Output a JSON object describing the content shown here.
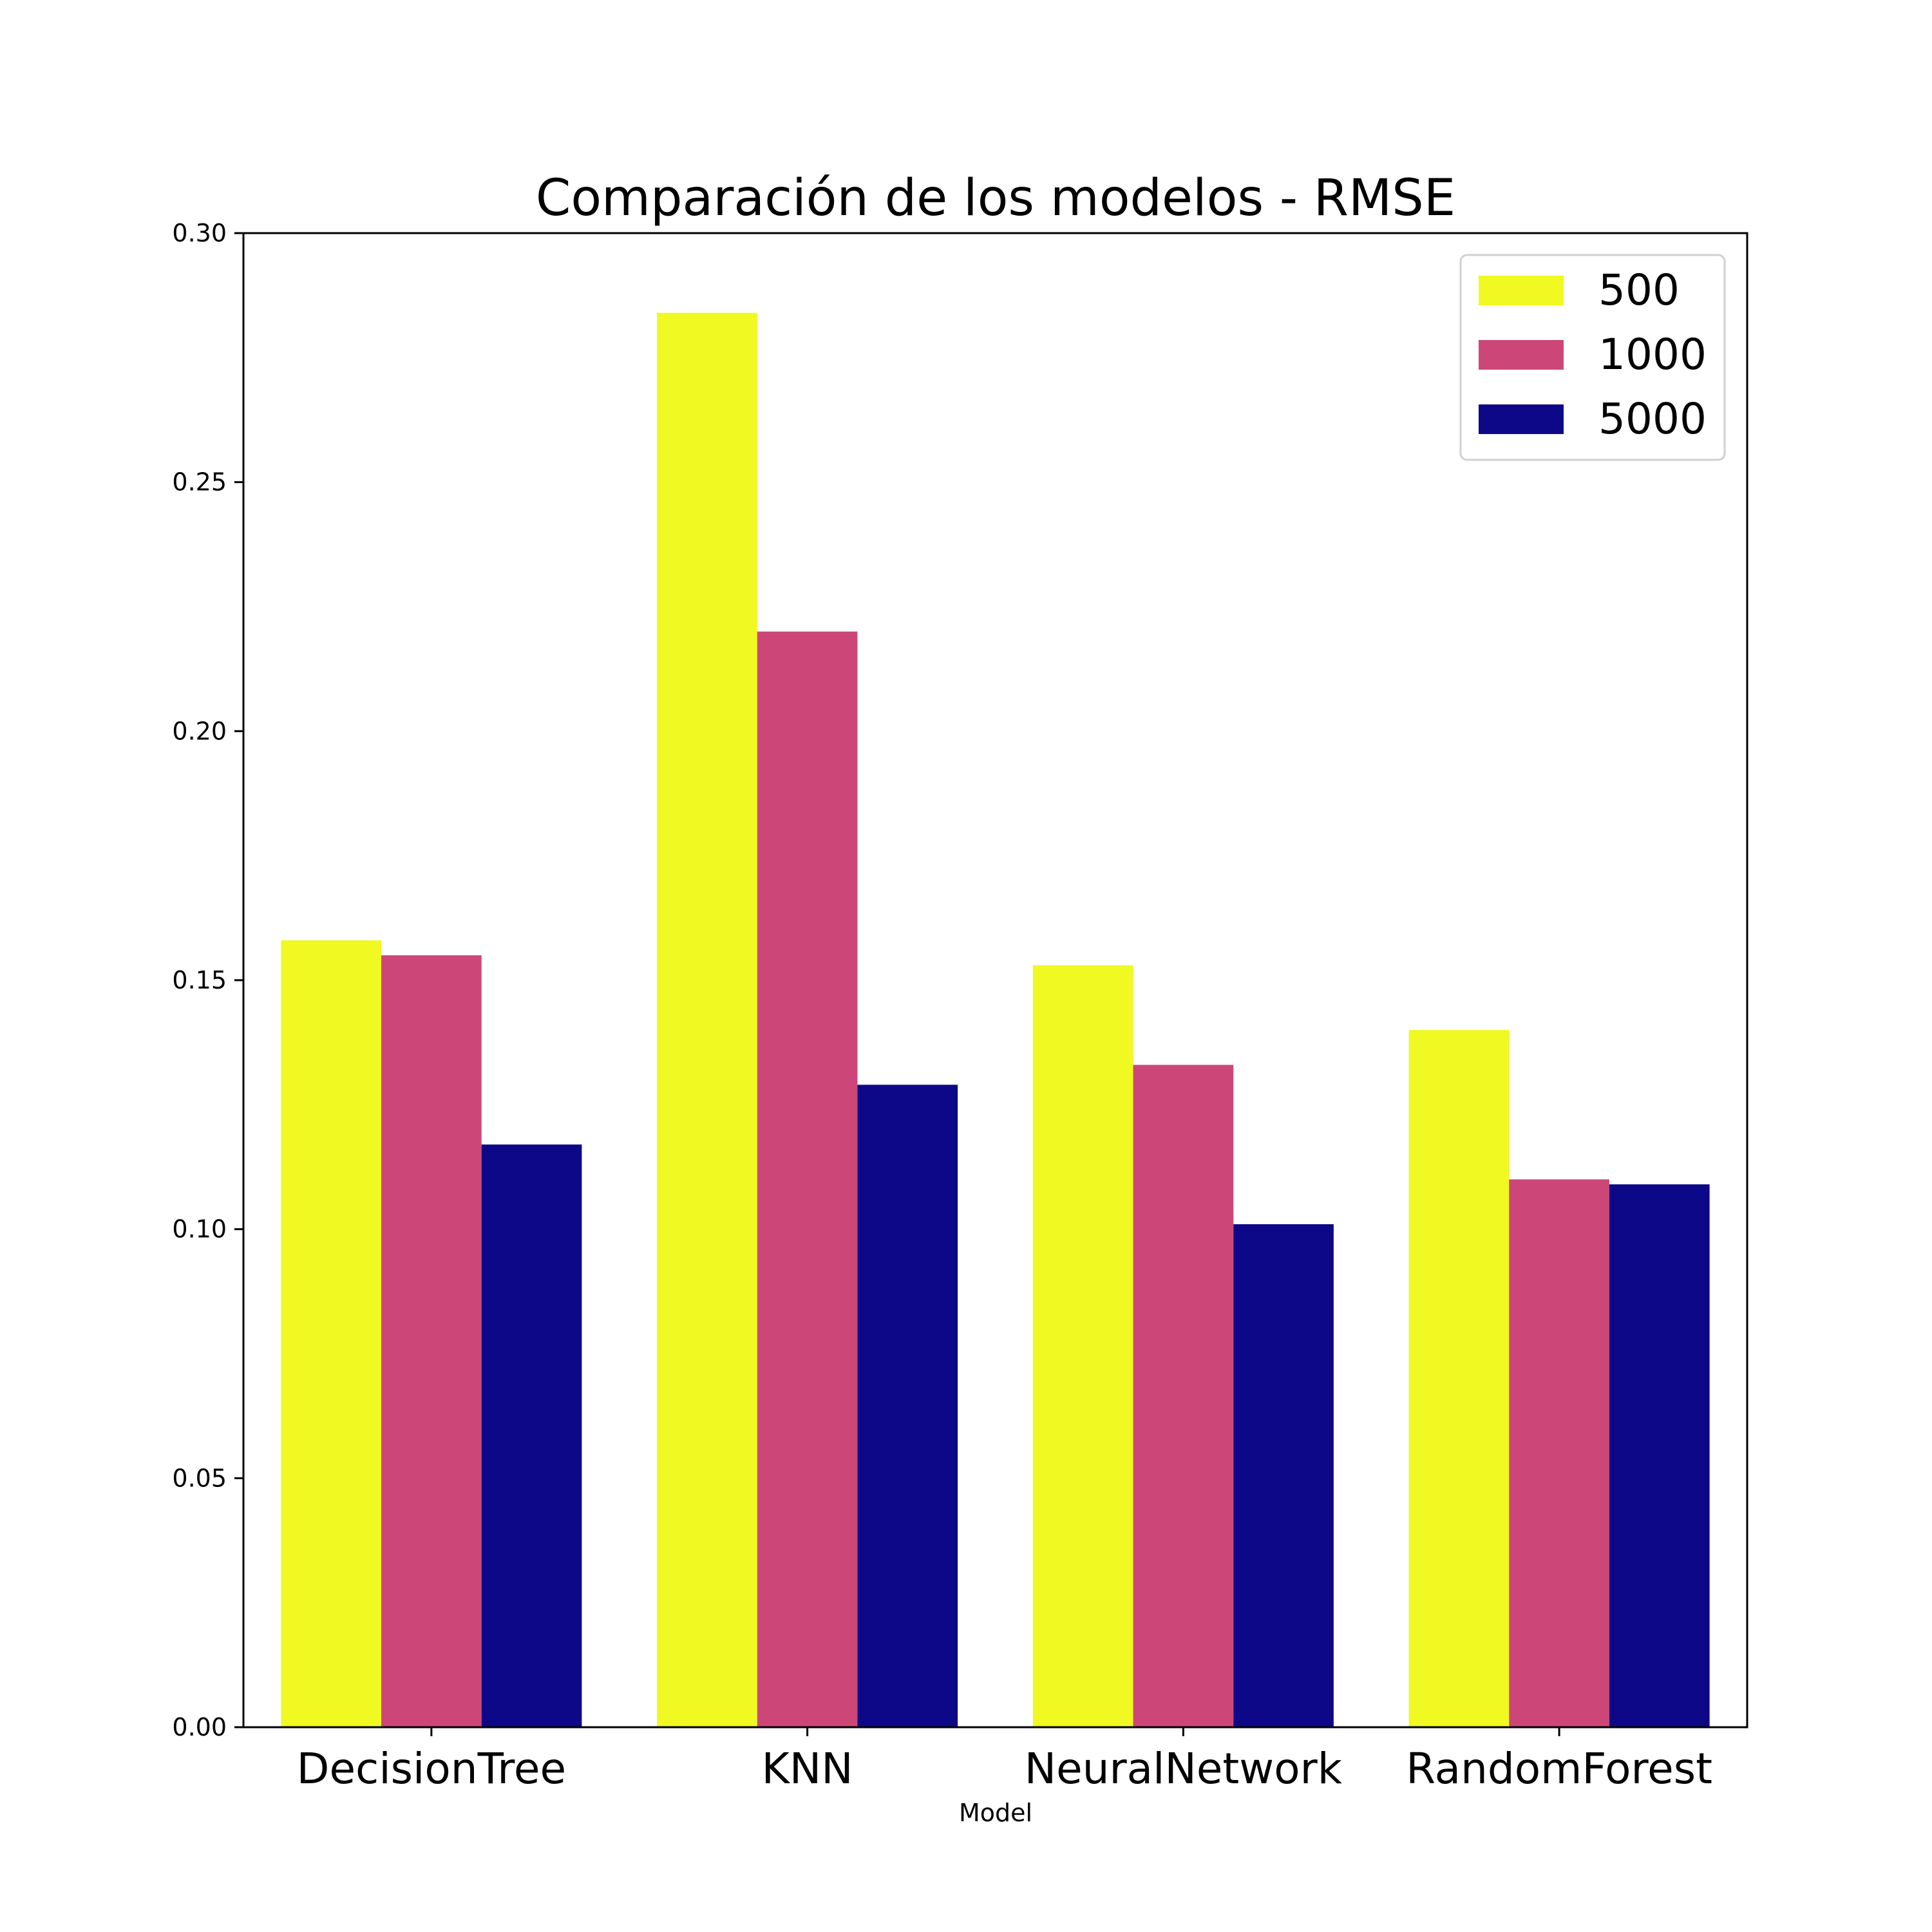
{
  "chart_data": {
    "type": "bar",
    "title": "Comparación de los modelos - RMSE",
    "xlabel": "Model",
    "ylabel": "",
    "categories": [
      "DecisionTree",
      "KNN",
      "NeuralNetwork",
      "RandomForest"
    ],
    "series": [
      {
        "name": "500",
        "color": "#f0f921",
        "values": [
          0.158,
          0.284,
          0.153,
          0.14
        ]
      },
      {
        "name": "1000",
        "color": "#cc4778",
        "values": [
          0.155,
          0.22,
          0.133,
          0.11
        ]
      },
      {
        "name": "5000",
        "color": "#0d0887",
        "values": [
          0.117,
          0.129,
          0.101,
          0.109
        ]
      }
    ],
    "ylim": [
      0,
      0.3
    ],
    "yticks": [
      "0.00",
      "0.05",
      "0.10",
      "0.15",
      "0.20",
      "0.25",
      "0.30"
    ],
    "grid": false,
    "legend_position": "top-right"
  }
}
